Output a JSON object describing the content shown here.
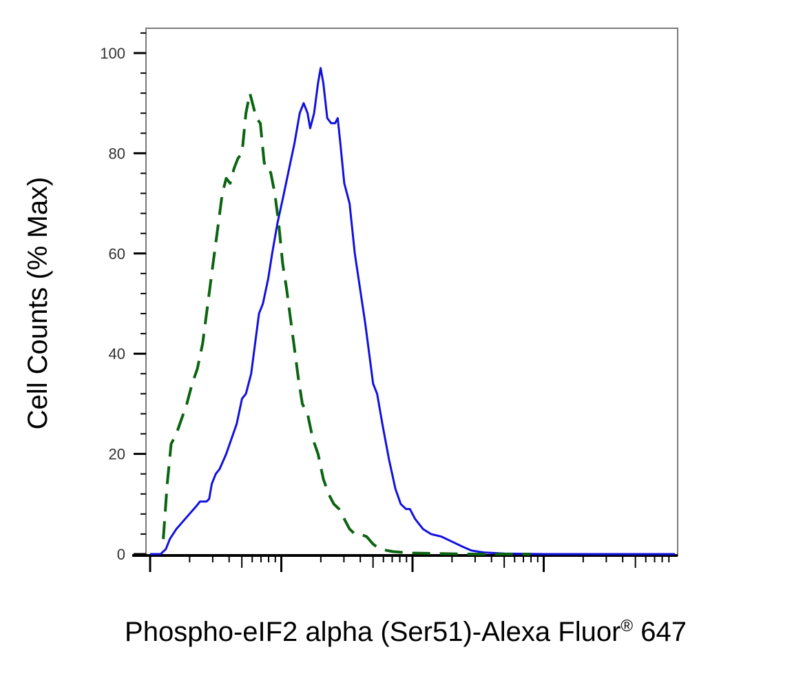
{
  "chart_data": {
    "type": "line",
    "title": "",
    "xlabel": "Phospho-eIF2 alpha (Ser51)-Alexa Fluor",
    "xlabel_mark": "®",
    "xlabel_suffix": "647",
    "ylabel": "Cell Counts (% Max)",
    "ylim": [
      0,
      100
    ],
    "yticks": [
      "0",
      "20",
      "40",
      "60",
      "80",
      "100"
    ],
    "xscale": "log",
    "x_decades": 4,
    "grid": false,
    "legend": "none",
    "colors": {
      "solid": "#1010e0",
      "dashed": "#0a6410"
    },
    "series": [
      {
        "style": "solid",
        "color": "#1010e0",
        "points": [
          [
            0.0,
            0
          ],
          [
            0.08,
            0
          ],
          [
            0.12,
            1
          ],
          [
            0.15,
            3
          ],
          [
            0.2,
            5
          ],
          [
            0.25,
            6.5
          ],
          [
            0.3,
            8
          ],
          [
            0.35,
            9.5
          ],
          [
            0.38,
            10.5
          ],
          [
            0.43,
            10.5
          ],
          [
            0.45,
            11
          ],
          [
            0.47,
            14
          ],
          [
            0.5,
            16
          ],
          [
            0.53,
            17
          ],
          [
            0.58,
            20
          ],
          [
            0.62,
            23
          ],
          [
            0.66,
            26
          ],
          [
            0.7,
            31
          ],
          [
            0.73,
            32
          ],
          [
            0.77,
            36
          ],
          [
            0.8,
            42
          ],
          [
            0.83,
            48
          ],
          [
            0.86,
            50
          ],
          [
            0.9,
            55
          ],
          [
            0.93,
            60
          ],
          [
            0.97,
            66
          ],
          [
            1.02,
            72
          ],
          [
            1.06,
            77
          ],
          [
            1.1,
            82
          ],
          [
            1.14,
            88
          ],
          [
            1.17,
            90
          ],
          [
            1.2,
            88
          ],
          [
            1.22,
            85
          ],
          [
            1.25,
            88
          ],
          [
            1.28,
            94
          ],
          [
            1.3,
            97
          ],
          [
            1.32,
            94
          ],
          [
            1.35,
            87
          ],
          [
            1.38,
            86
          ],
          [
            1.41,
            86
          ],
          [
            1.43,
            87
          ],
          [
            1.45,
            82
          ],
          [
            1.48,
            74
          ],
          [
            1.52,
            70
          ],
          [
            1.56,
            60
          ],
          [
            1.6,
            53
          ],
          [
            1.64,
            46
          ],
          [
            1.67,
            40
          ],
          [
            1.7,
            34
          ],
          [
            1.73,
            32
          ],
          [
            1.77,
            26
          ],
          [
            1.82,
            19
          ],
          [
            1.87,
            13
          ],
          [
            1.91,
            10
          ],
          [
            1.95,
            9
          ],
          [
            1.98,
            9
          ],
          [
            2.02,
            7
          ],
          [
            2.08,
            5
          ],
          [
            2.14,
            4
          ],
          [
            2.22,
            3.5
          ],
          [
            2.3,
            2.5
          ],
          [
            2.38,
            1.5
          ],
          [
            2.45,
            0.7
          ],
          [
            2.55,
            0.3
          ],
          [
            2.7,
            0.1
          ],
          [
            3.0,
            0
          ],
          [
            4.0,
            0
          ]
        ]
      },
      {
        "style": "dashed",
        "color": "#0a6410",
        "points": [
          [
            0.1,
            3
          ],
          [
            0.13,
            14
          ],
          [
            0.16,
            22
          ],
          [
            0.2,
            24
          ],
          [
            0.24,
            27
          ],
          [
            0.28,
            30
          ],
          [
            0.32,
            34
          ],
          [
            0.36,
            37
          ],
          [
            0.4,
            42
          ],
          [
            0.44,
            50
          ],
          [
            0.48,
            58
          ],
          [
            0.52,
            66
          ],
          [
            0.55,
            72
          ],
          [
            0.58,
            75
          ],
          [
            0.61,
            74
          ],
          [
            0.64,
            77
          ],
          [
            0.67,
            79
          ],
          [
            0.7,
            80
          ],
          [
            0.73,
            88
          ],
          [
            0.76,
            92
          ],
          [
            0.78,
            90
          ],
          [
            0.81,
            87
          ],
          [
            0.84,
            86
          ],
          [
            0.87,
            78
          ],
          [
            0.89,
            78
          ],
          [
            0.92,
            76
          ],
          [
            0.95,
            72
          ],
          [
            0.98,
            66
          ],
          [
            1.01,
            58
          ],
          [
            1.04,
            53
          ],
          [
            1.07,
            47
          ],
          [
            1.1,
            41
          ],
          [
            1.13,
            35
          ],
          [
            1.16,
            30
          ],
          [
            1.2,
            28
          ],
          [
            1.24,
            23
          ],
          [
            1.28,
            20
          ],
          [
            1.32,
            15
          ],
          [
            1.36,
            12
          ],
          [
            1.4,
            10
          ],
          [
            1.44,
            9
          ],
          [
            1.48,
            7
          ],
          [
            1.52,
            5
          ],
          [
            1.56,
            4
          ],
          [
            1.6,
            4
          ],
          [
            1.65,
            3.5
          ],
          [
            1.7,
            2
          ],
          [
            1.75,
            1
          ],
          [
            1.85,
            0.5
          ],
          [
            2.0,
            0.2
          ],
          [
            2.4,
            0
          ],
          [
            2.9,
            0
          ]
        ]
      }
    ]
  }
}
